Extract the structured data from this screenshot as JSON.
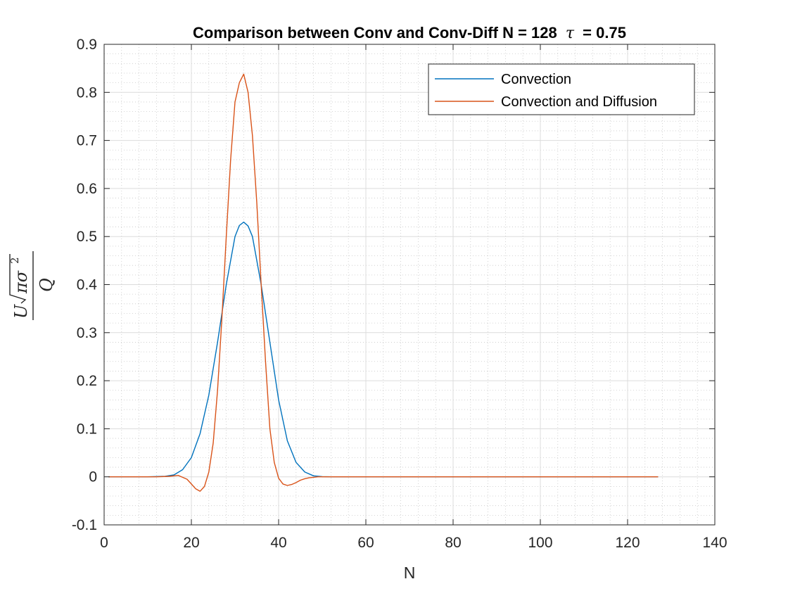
{
  "chart_data": {
    "type": "line",
    "title_prefix": "Comparison between Conv and Conv-Diff N = 128",
    "title_symbol": "τ",
    "title_suffix": "= 0.75",
    "xlabel": "N",
    "ylabel": "U √(πσ²) / Q",
    "ylabel_parts": {
      "numerator_var": "U",
      "radical_content": "πσ",
      "exponent": "2",
      "denominator": "Q"
    },
    "xlim": [
      0,
      140
    ],
    "ylim": [
      -0.1,
      0.9
    ],
    "x_ticks": [
      "0",
      "20",
      "40",
      "60",
      "80",
      "100",
      "120",
      "140"
    ],
    "y_ticks": [
      "-0.1",
      "0",
      "0.1",
      "0.2",
      "0.3",
      "0.4",
      "0.5",
      "0.6",
      "0.7",
      "0.8",
      "0.9"
    ],
    "grid": true,
    "minor_grid": true,
    "legend_position": "top-right",
    "series": [
      {
        "name": "Convection",
        "color": "#0072BD",
        "x": [
          1,
          10,
          14,
          16,
          18,
          20,
          22,
          24,
          26,
          28,
          30,
          31,
          32,
          33,
          34,
          36,
          38,
          40,
          42,
          44,
          46,
          48,
          50,
          52,
          127
        ],
        "y": [
          0,
          0,
          0.001,
          0.004,
          0.015,
          0.04,
          0.09,
          0.17,
          0.28,
          0.4,
          0.5,
          0.523,
          0.53,
          0.522,
          0.5,
          0.4,
          0.28,
          0.16,
          0.075,
          0.03,
          0.01,
          0.002,
          0.0005,
          0,
          0
        ]
      },
      {
        "name": "Convection and Diffusion",
        "color": "#D95319",
        "x": [
          1,
          12,
          15,
          17,
          19,
          20,
          21,
          22,
          23,
          24,
          25,
          26,
          27,
          28,
          29,
          30,
          31,
          32,
          33,
          34,
          35,
          36,
          37,
          38,
          39,
          40,
          41,
          42,
          43,
          44,
          45,
          46,
          47,
          48,
          49,
          52,
          127
        ],
        "y": [
          0,
          0,
          0.001,
          0.003,
          -0.005,
          -0.015,
          -0.025,
          -0.03,
          -0.02,
          0.01,
          0.07,
          0.18,
          0.33,
          0.5,
          0.66,
          0.78,
          0.82,
          0.838,
          0.8,
          0.71,
          0.57,
          0.4,
          0.24,
          0.1,
          0.03,
          -0.003,
          -0.015,
          -0.018,
          -0.016,
          -0.012,
          -0.007,
          -0.004,
          -0.002,
          -0.001,
          0,
          0,
          0
        ]
      }
    ]
  }
}
